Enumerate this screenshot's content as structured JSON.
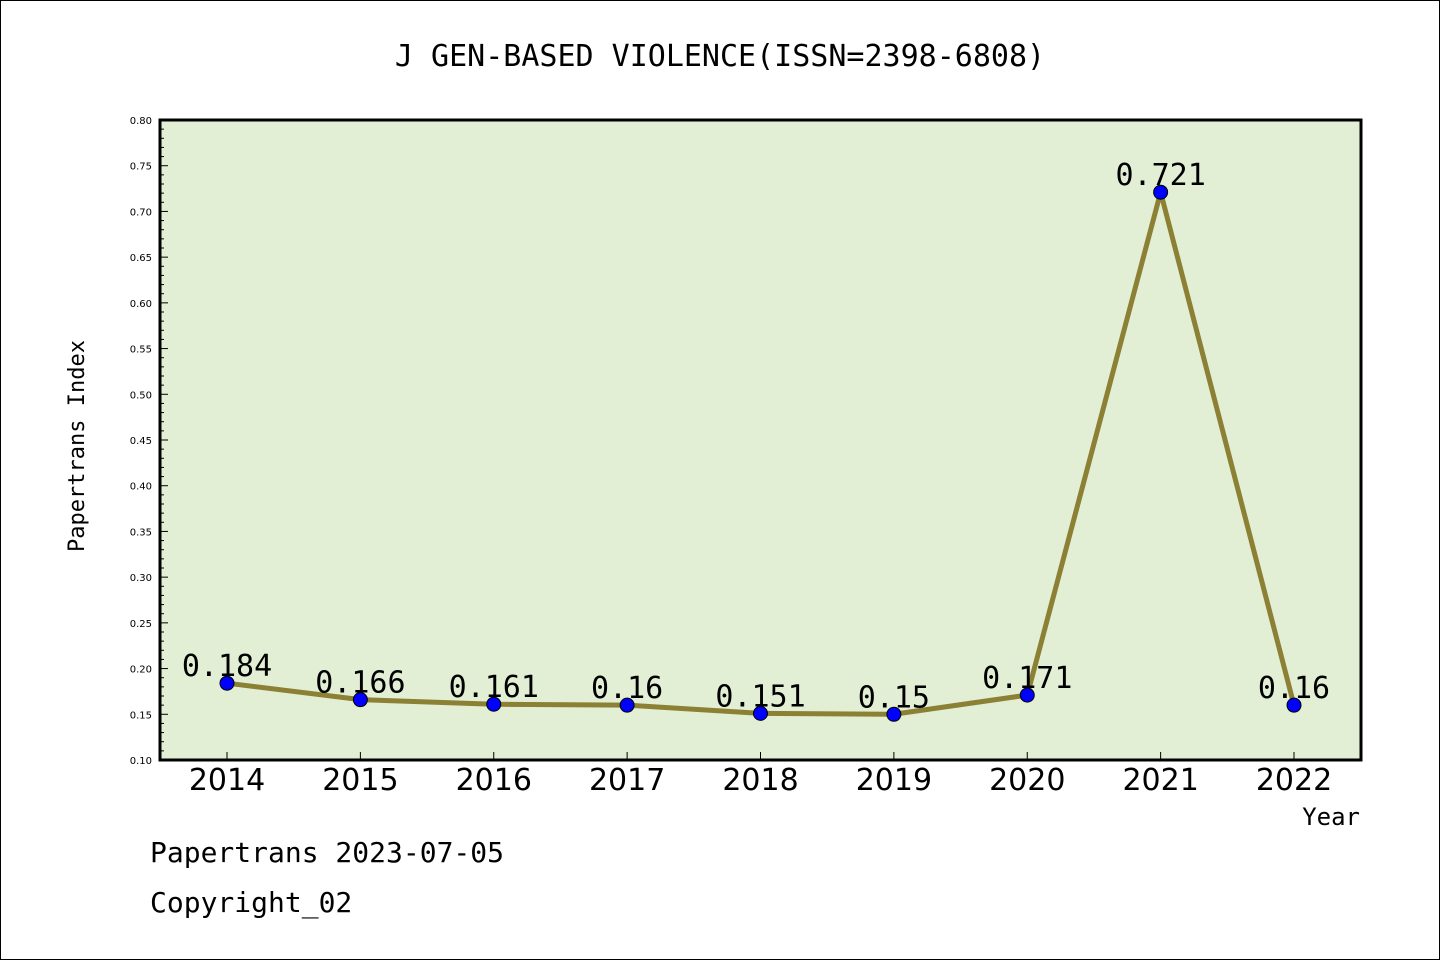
{
  "footer": {
    "line1": "Papertrans 2023-07-05",
    "line2": "Copyright_02"
  },
  "chart_data": {
    "type": "line",
    "title": "J GEN-BASED VIOLENCE(ISSN=2398-6808)",
    "xlabel": "Year",
    "ylabel": "Papertrans Index",
    "ylim": [
      0.1,
      0.8
    ],
    "ytick_step": 0.05,
    "y_minor_step": 0.01,
    "x": [
      "2014",
      "2015",
      "2016",
      "2017",
      "2018",
      "2019",
      "2020",
      "2021",
      "2022"
    ],
    "series": [
      {
        "values": [
          0.184,
          0.166,
          0.161,
          0.16,
          0.151,
          0.15,
          0.171,
          0.721,
          0.16
        ],
        "data_labels": [
          "0.184",
          "0.166",
          "0.161",
          "0.16",
          "0.151",
          "0.15",
          "0.171",
          "0.721",
          "0.16"
        ],
        "line_color": "#8b8033",
        "marker_color": "#0000ff"
      }
    ],
    "plot_background": "#e2efd5",
    "grid": false,
    "legend": "none"
  }
}
